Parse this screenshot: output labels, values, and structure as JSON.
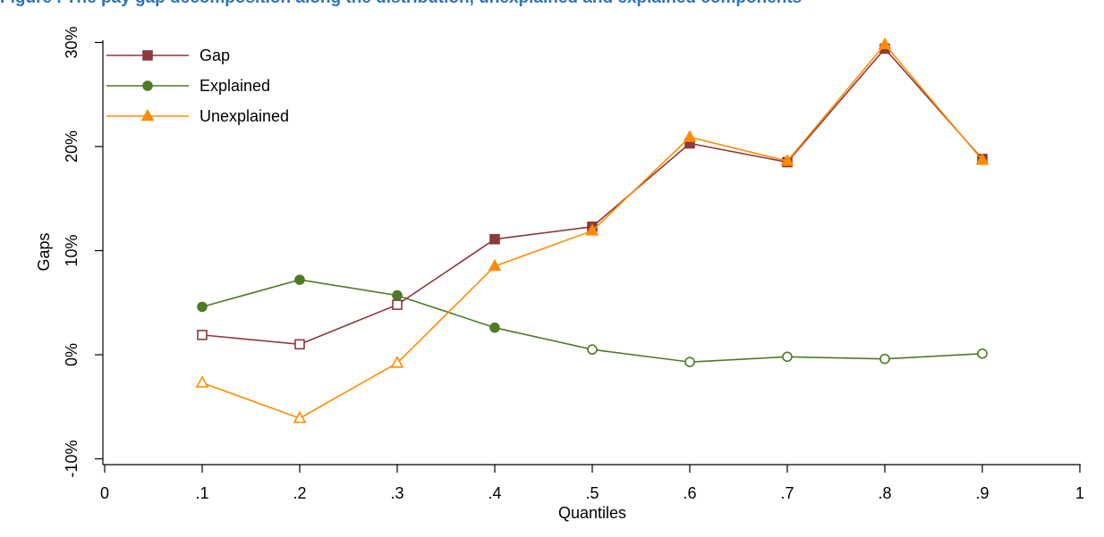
{
  "caption": "Figure . The pay gap decomposition along the distribution, unexplained and explained components",
  "chart_data": {
    "type": "line",
    "xlabel": "Quantiles",
    "ylabel": "Gaps",
    "xlim": [
      0,
      1
    ],
    "ylim": [
      -10.5,
      30.5
    ],
    "xticks": [
      {
        "value": 0,
        "label": "0"
      },
      {
        "value": 0.1,
        "label": ".1"
      },
      {
        "value": 0.2,
        "label": ".2"
      },
      {
        "value": 0.3,
        "label": ".3"
      },
      {
        "value": 0.4,
        "label": ".4"
      },
      {
        "value": 0.5,
        "label": ".5"
      },
      {
        "value": 0.6,
        "label": ".6"
      },
      {
        "value": 0.7,
        "label": ".7"
      },
      {
        "value": 0.8,
        "label": ".8"
      },
      {
        "value": 0.9,
        "label": ".9"
      },
      {
        "value": 1,
        "label": "1"
      }
    ],
    "yticks": [
      {
        "value": -10,
        "label": "-10%"
      },
      {
        "value": 0,
        "label": "0%"
      },
      {
        "value": 10,
        "label": "10%"
      },
      {
        "value": 20,
        "label": "20%"
      },
      {
        "value": 30,
        "label": "30%"
      }
    ],
    "grid": false,
    "legend_position": "top-left",
    "x": [
      0.1,
      0.2,
      0.3,
      0.4,
      0.5,
      0.6,
      0.7,
      0.8,
      0.9
    ],
    "series": [
      {
        "name": "Gap",
        "color": "#8b3a3e",
        "marker": "square",
        "values": [
          1.9,
          1.0,
          4.8,
          11.1,
          12.3,
          20.3,
          18.5,
          29.4,
          18.8
        ],
        "filled": [
          false,
          false,
          false,
          true,
          true,
          true,
          true,
          true,
          true
        ]
      },
      {
        "name": "Explained",
        "color": "#4f7a28",
        "marker": "circle",
        "values": [
          4.6,
          7.2,
          5.7,
          2.6,
          0.5,
          -0.7,
          -0.2,
          -0.4,
          0.1
        ],
        "filled": [
          true,
          true,
          true,
          true,
          false,
          false,
          false,
          false,
          false
        ]
      },
      {
        "name": "Unexplained",
        "color": "#ff8c00",
        "marker": "triangle",
        "values": [
          -2.7,
          -6.1,
          -0.8,
          8.5,
          11.9,
          20.9,
          18.6,
          29.8,
          18.7
        ],
        "filled": [
          false,
          false,
          false,
          true,
          true,
          true,
          true,
          true,
          true
        ]
      }
    ]
  }
}
